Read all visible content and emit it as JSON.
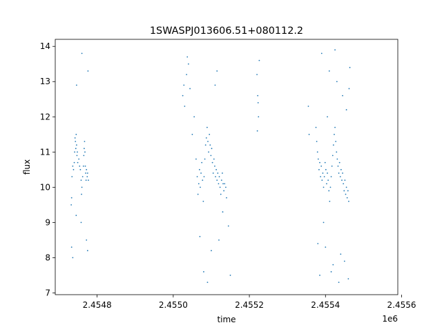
{
  "chart_data": {
    "type": "scatter",
    "title": "1SWASPJ013606.51+080112.2",
    "xlabel": "time",
    "ylabel": "flux",
    "x_offset_label": "1e6",
    "xlim": [
      2454690,
      2455590
    ],
    "ylim": [
      6.95,
      14.2
    ],
    "xticks": [
      2454800,
      2455000,
      2455200,
      2455400,
      2455600
    ],
    "xtick_labels": [
      "2.4548",
      "2.4550",
      "2.4552",
      "2.4554",
      "2.4556"
    ],
    "yticks": [
      7,
      8,
      9,
      10,
      11,
      12,
      13,
      14
    ],
    "ytick_labels": [
      "7",
      "8",
      "9",
      "10",
      "11",
      "12",
      "13",
      "14"
    ],
    "grid": false,
    "marker_color": "#1f77b4",
    "series": [
      {
        "values": [
          [
            2454732,
            9.5
          ],
          [
            2454733,
            9.7
          ],
          [
            2454734,
            10.3
          ],
          [
            2454736,
            10.6
          ],
          [
            2454738,
            10.5
          ],
          [
            2454740,
            10.7
          ],
          [
            2454741,
            11.0
          ],
          [
            2454742,
            11.4
          ],
          [
            2454743,
            11.3
          ],
          [
            2454744,
            11.1
          ],
          [
            2454745,
            11.5
          ],
          [
            2454746,
            11.2
          ],
          [
            2454747,
            10.9
          ],
          [
            2454748,
            11.0
          ],
          [
            2454749,
            10.7
          ],
          [
            2454752,
            10.8
          ],
          [
            2454754,
            10.6
          ],
          [
            2454756,
            10.5
          ],
          [
            2454758,
            10.2
          ],
          [
            2454759,
            9.8
          ],
          [
            2454760,
            10.0
          ],
          [
            2454762,
            10.3
          ],
          [
            2454764,
            10.6
          ],
          [
            2454765,
            10.9
          ],
          [
            2454766,
            11.1
          ],
          [
            2454767,
            11.3
          ],
          [
            2454768,
            11.0
          ],
          [
            2454769,
            10.6
          ],
          [
            2454770,
            10.4
          ],
          [
            2454771,
            10.2
          ],
          [
            2454772,
            10.5
          ],
          [
            2454774,
            10.3
          ],
          [
            2454775,
            10.4
          ],
          [
            2454777,
            10.2
          ],
          [
            2454733,
            8.3
          ],
          [
            2454736,
            8.0
          ],
          [
            2454746,
            12.9
          ],
          [
            2454760,
            13.8
          ],
          [
            2454775,
            8.2
          ],
          [
            2454776,
            13.3
          ],
          [
            2454745,
            9.2
          ],
          [
            2454758,
            9.0
          ],
          [
            2454772,
            8.5
          ],
          [
            2455025,
            12.6
          ],
          [
            2455028,
            12.9
          ],
          [
            2455030,
            12.3
          ],
          [
            2455035,
            13.2
          ],
          [
            2455037,
            13.7
          ],
          [
            2455040,
            13.5
          ],
          [
            2455044,
            12.8
          ],
          [
            2455050,
            11.5
          ],
          [
            2455055,
            12.0
          ],
          [
            2455060,
            10.8
          ],
          [
            2455063,
            10.3
          ],
          [
            2455065,
            9.8
          ],
          [
            2455067,
            10.1
          ],
          [
            2455069,
            10.5
          ],
          [
            2455071,
            10.0
          ],
          [
            2455073,
            10.4
          ],
          [
            2455075,
            10.7
          ],
          [
            2455077,
            10.2
          ],
          [
            2455079,
            9.6
          ],
          [
            2455081,
            10.3
          ],
          [
            2455083,
            10.8
          ],
          [
            2455085,
            11.2
          ],
          [
            2455087,
            11.4
          ],
          [
            2455089,
            11.7
          ],
          [
            2455091,
            11.3
          ],
          [
            2455093,
            11.0
          ],
          [
            2455095,
            11.5
          ],
          [
            2455097,
            11.2
          ],
          [
            2455099,
            10.9
          ],
          [
            2455101,
            11.1
          ],
          [
            2455103,
            10.7
          ],
          [
            2455105,
            10.4
          ],
          [
            2455107,
            10.8
          ],
          [
            2455109,
            10.6
          ],
          [
            2455111,
            10.3
          ],
          [
            2455113,
            10.5
          ],
          [
            2455115,
            10.2
          ],
          [
            2455117,
            10.4
          ],
          [
            2455119,
            10.1
          ],
          [
            2455121,
            10.3
          ],
          [
            2455123,
            10.0
          ],
          [
            2455125,
            9.8
          ],
          [
            2455127,
            10.2
          ],
          [
            2455129,
            10.4
          ],
          [
            2455131,
            10.1
          ],
          [
            2455133,
            9.9
          ],
          [
            2455135,
            10.1
          ],
          [
            2455138,
            10.0
          ],
          [
            2455140,
            9.7
          ],
          [
            2455070,
            8.6
          ],
          [
            2455080,
            7.6
          ],
          [
            2455090,
            7.3
          ],
          [
            2455100,
            8.2
          ],
          [
            2455110,
            12.9
          ],
          [
            2455115,
            13.3
          ],
          [
            2455120,
            8.5
          ],
          [
            2455130,
            9.3
          ],
          [
            2455145,
            8.9
          ],
          [
            2455150,
            7.5
          ],
          [
            2455220,
            13.2
          ],
          [
            2455222,
            12.6
          ],
          [
            2455224,
            12.0
          ],
          [
            2455226,
            13.6
          ],
          [
            2455221,
            11.6
          ],
          [
            2455223,
            12.4
          ],
          [
            2455355,
            12.3
          ],
          [
            2455357,
            11.5
          ],
          [
            2455375,
            11.7
          ],
          [
            2455377,
            11.3
          ],
          [
            2455379,
            11.0
          ],
          [
            2455381,
            10.8
          ],
          [
            2455383,
            10.5
          ],
          [
            2455385,
            10.7
          ],
          [
            2455387,
            10.3
          ],
          [
            2455389,
            10.6
          ],
          [
            2455391,
            10.2
          ],
          [
            2455393,
            10.4
          ],
          [
            2455395,
            10.0
          ],
          [
            2455397,
            10.3
          ],
          [
            2455399,
            10.7
          ],
          [
            2455401,
            10.5
          ],
          [
            2455403,
            10.1
          ],
          [
            2455405,
            10.4
          ],
          [
            2455407,
            10.2
          ],
          [
            2455409,
            9.9
          ],
          [
            2455411,
            9.6
          ],
          [
            2455413,
            10.0
          ],
          [
            2455415,
            10.3
          ],
          [
            2455417,
            10.6
          ],
          [
            2455419,
            10.9
          ],
          [
            2455421,
            11.2
          ],
          [
            2455423,
            11.5
          ],
          [
            2455425,
            11.7
          ],
          [
            2455427,
            11.3
          ],
          [
            2455429,
            11.0
          ],
          [
            2455431,
            10.8
          ],
          [
            2455433,
            10.6
          ],
          [
            2455435,
            10.4
          ],
          [
            2455437,
            10.7
          ],
          [
            2455439,
            10.3
          ],
          [
            2455441,
            10.5
          ],
          [
            2455443,
            10.2
          ],
          [
            2455445,
            10.4
          ],
          [
            2455447,
            10.1
          ],
          [
            2455449,
            9.9
          ],
          [
            2455451,
            10.2
          ],
          [
            2455453,
            9.8
          ],
          [
            2455455,
            10.0
          ],
          [
            2455457,
            9.7
          ],
          [
            2455459,
            9.9
          ],
          [
            2455461,
            9.6
          ],
          [
            2455380,
            8.4
          ],
          [
            2455385,
            7.5
          ],
          [
            2455390,
            13.8
          ],
          [
            2455395,
            9.0
          ],
          [
            2455400,
            8.3
          ],
          [
            2455410,
            13.3
          ],
          [
            2455415,
            7.6
          ],
          [
            2455425,
            13.9
          ],
          [
            2455430,
            13.0
          ],
          [
            2455435,
            7.3
          ],
          [
            2455440,
            8.1
          ],
          [
            2455445,
            12.6
          ],
          [
            2455450,
            7.9
          ],
          [
            2455462,
            12.8
          ],
          [
            2455464,
            13.4
          ],
          [
            2455460,
            7.4
          ],
          [
            2455420,
            7.8
          ],
          [
            2455405,
            12.0
          ],
          [
            2455455,
            12.2
          ]
        ]
      }
    ]
  }
}
